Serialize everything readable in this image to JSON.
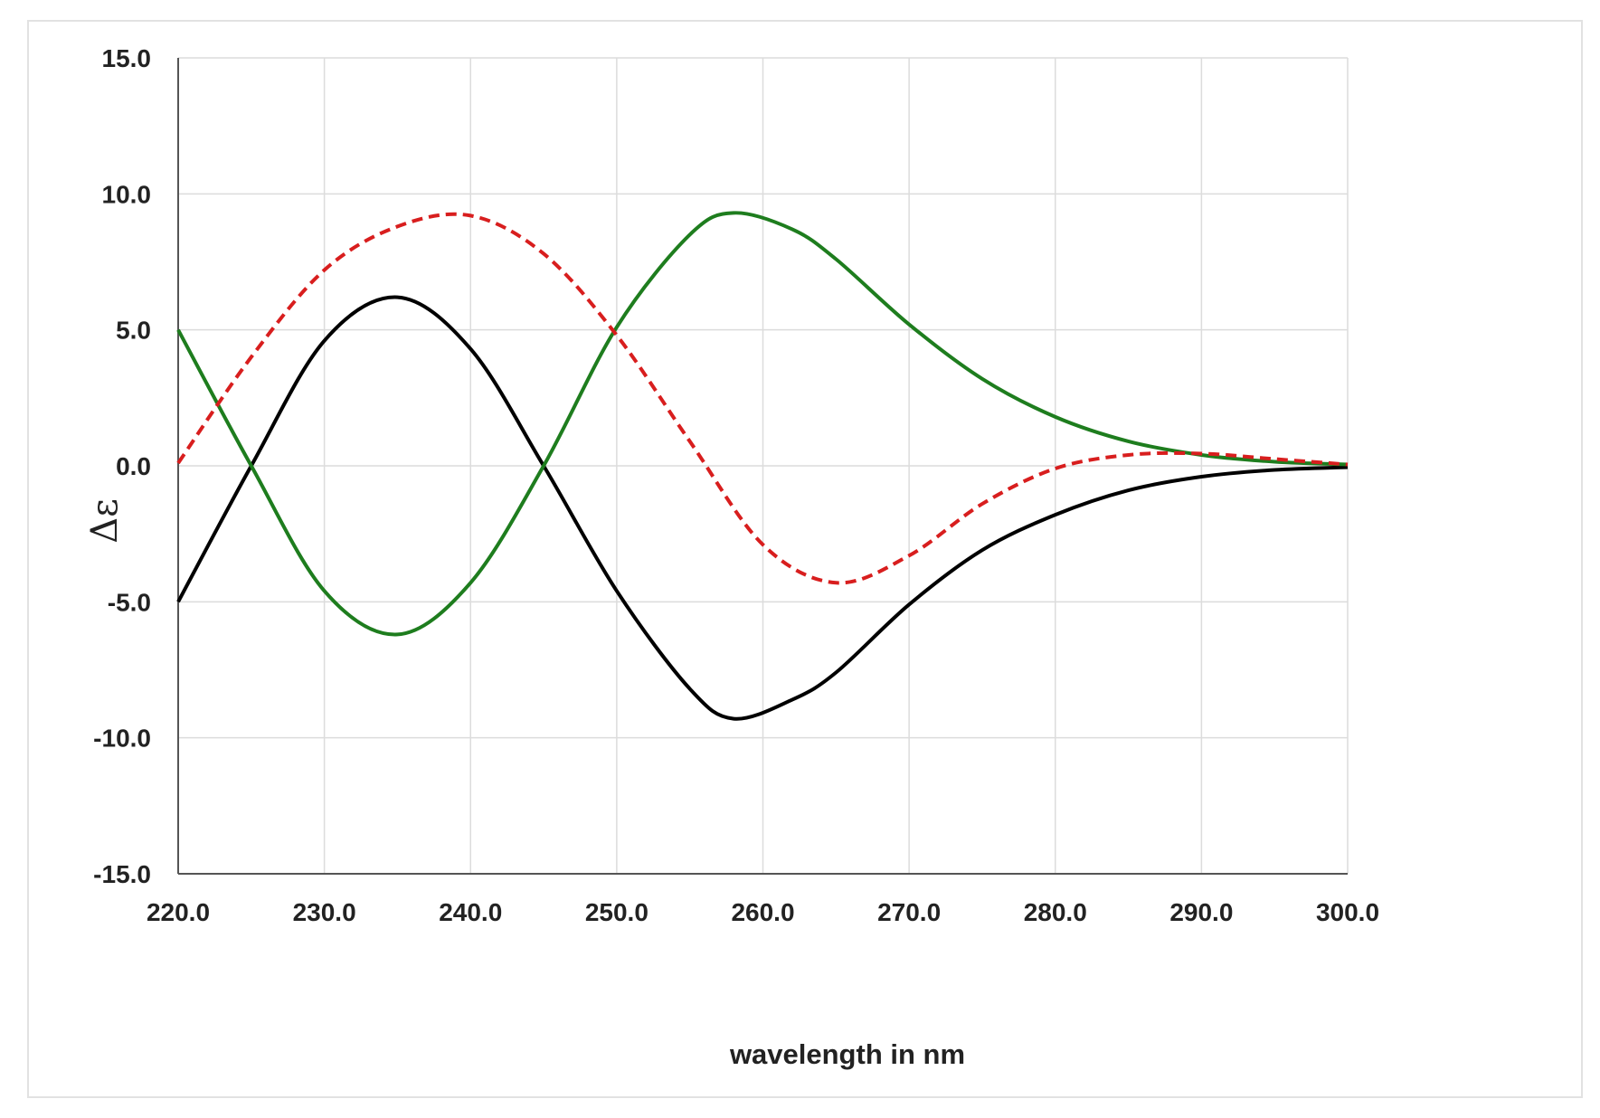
{
  "chart_data": {
    "type": "line",
    "title": "",
    "xlabel": "wavelength in nm",
    "ylabel": "Δε",
    "xlim": [
      220,
      300
    ],
    "ylim": [
      -15,
      15
    ],
    "x_ticks": [
      "220.0",
      "230.0",
      "240.0",
      "250.0",
      "260.0",
      "270.0",
      "280.0",
      "290.0",
      "300.0"
    ],
    "y_ticks": [
      "15.0",
      "10.0",
      "5.0",
      "0.0",
      "-5.0",
      "-10.0",
      "-15.0"
    ],
    "grid": true,
    "legend": "none",
    "series": [
      {
        "color": "#000000",
        "style": "solid",
        "points": [
          [
            220,
            -5.0
          ],
          [
            225,
            0.0
          ],
          [
            230,
            4.6
          ],
          [
            235,
            6.2
          ],
          [
            240,
            4.3
          ],
          [
            245,
            0.0
          ],
          [
            250,
            -4.6
          ],
          [
            255,
            -8.2
          ],
          [
            258,
            -9.3
          ],
          [
            262,
            -8.6
          ],
          [
            265,
            -7.6
          ],
          [
            270,
            -5.1
          ],
          [
            275,
            -3.1
          ],
          [
            280,
            -1.8
          ],
          [
            285,
            -0.9
          ],
          [
            290,
            -0.4
          ],
          [
            295,
            -0.15
          ],
          [
            300,
            -0.05
          ]
        ]
      },
      {
        "color": "#1e7d1e",
        "style": "solid",
        "points": [
          [
            220,
            5.0
          ],
          [
            225,
            0.0
          ],
          [
            230,
            -4.6
          ],
          [
            235,
            -6.2
          ],
          [
            240,
            -4.3
          ],
          [
            245,
            0.0
          ],
          [
            250,
            5.1
          ],
          [
            255,
            8.5
          ],
          [
            258,
            9.3
          ],
          [
            262,
            8.7
          ],
          [
            265,
            7.6
          ],
          [
            270,
            5.2
          ],
          [
            275,
            3.2
          ],
          [
            280,
            1.8
          ],
          [
            285,
            0.9
          ],
          [
            290,
            0.4
          ],
          [
            295,
            0.15
          ],
          [
            300,
            0.05
          ]
        ]
      },
      {
        "color": "#d81e1e",
        "style": "dashed",
        "points": [
          [
            220,
            0.1
          ],
          [
            225,
            4.0
          ],
          [
            230,
            7.2
          ],
          [
            235,
            8.8
          ],
          [
            240,
            9.2
          ],
          [
            245,
            7.8
          ],
          [
            250,
            4.8
          ],
          [
            255,
            0.9
          ],
          [
            260,
            -2.9
          ],
          [
            265,
            -4.3
          ],
          [
            270,
            -3.3
          ],
          [
            275,
            -1.4
          ],
          [
            280,
            -0.1
          ],
          [
            285,
            0.4
          ],
          [
            290,
            0.45
          ],
          [
            295,
            0.25
          ],
          [
            300,
            0.05
          ]
        ]
      }
    ]
  }
}
